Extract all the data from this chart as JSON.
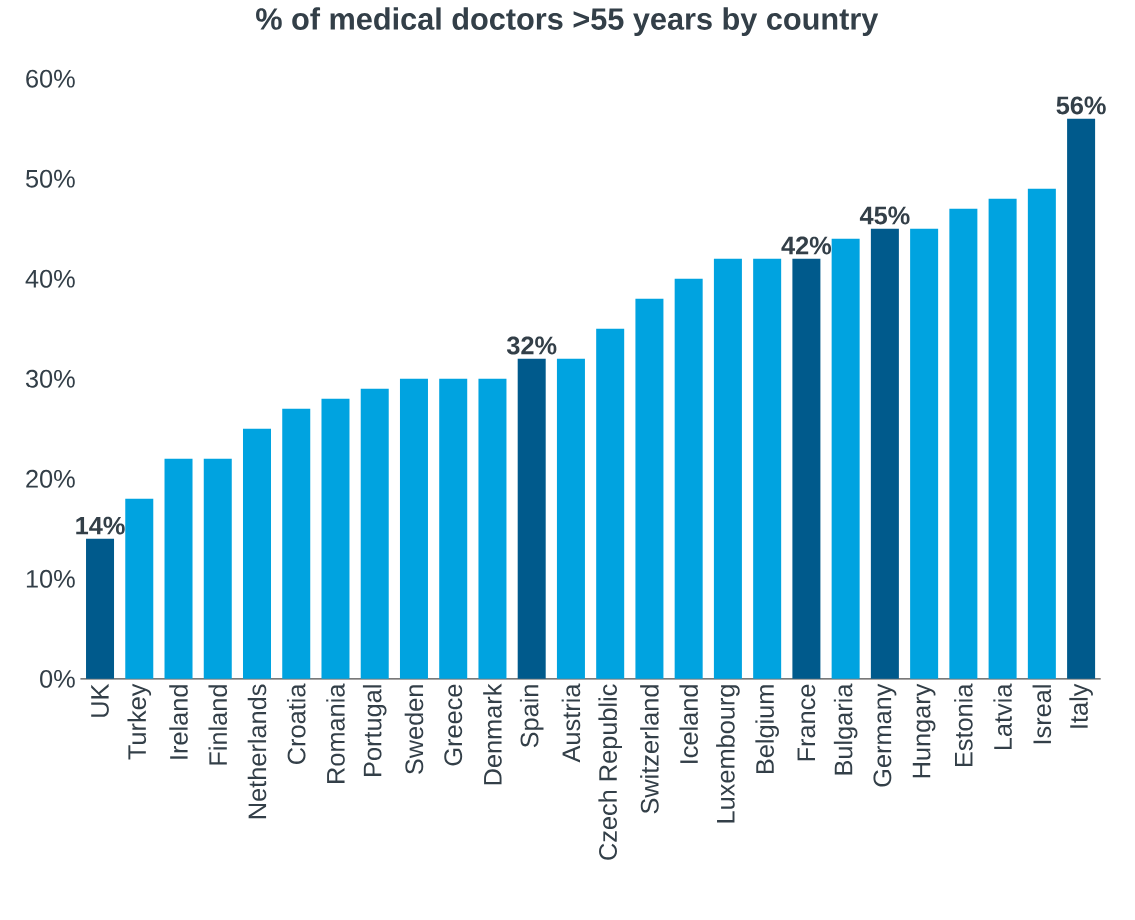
{
  "chart_data": {
    "type": "bar",
    "title": "% of medical doctors >55 years by country",
    "categories": [
      "UK",
      "Turkey",
      "Ireland",
      "Finland",
      "Netherlands",
      "Croatia",
      "Romania",
      "Portugal",
      "Sweden",
      "Greece",
      "Denmark",
      "Spain",
      "Austria",
      "Czech Republic",
      "Switzerland",
      "Iceland",
      "Luxembourg",
      "Belgium",
      "France",
      "Bulgaria",
      "Germany",
      "Hungary",
      "Estonia",
      "Latvia",
      "Isreal",
      "Italy"
    ],
    "values": [
      14,
      18,
      22,
      22,
      25,
      27,
      28,
      29,
      30,
      30,
      30,
      32,
      32,
      35,
      38,
      40,
      42,
      42,
      42,
      44,
      45,
      45,
      47,
      48,
      49,
      56
    ],
    "colors": [
      "#005a8c",
      "#00a3e0",
      "#00a3e0",
      "#00a3e0",
      "#00a3e0",
      "#00a3e0",
      "#00a3e0",
      "#00a3e0",
      "#00a3e0",
      "#00a3e0",
      "#00a3e0",
      "#005a8c",
      "#00a3e0",
      "#00a3e0",
      "#00a3e0",
      "#00a3e0",
      "#00a3e0",
      "#00a3e0",
      "#005a8c",
      "#00a3e0",
      "#005a8c",
      "#00a3e0",
      "#00a3e0",
      "#00a3e0",
      "#00a3e0",
      "#005a8c"
    ],
    "value_labels": [
      "14%",
      null,
      null,
      null,
      null,
      null,
      null,
      null,
      null,
      null,
      null,
      "32%",
      null,
      null,
      null,
      null,
      null,
      null,
      "42%",
      null,
      "45%",
      null,
      null,
      null,
      null,
      "56%"
    ],
    "ylim": [
      0,
      60
    ],
    "yticks": [
      {
        "value": 0,
        "label": "0%"
      },
      {
        "value": 10,
        "label": "10%"
      },
      {
        "value": 20,
        "label": "20%"
      },
      {
        "value": 30,
        "label": "30%"
      },
      {
        "value": 40,
        "label": "40%"
      },
      {
        "value": 50,
        "label": "50%"
      },
      {
        "value": 60,
        "label": "60%"
      }
    ],
    "grid": false
  }
}
